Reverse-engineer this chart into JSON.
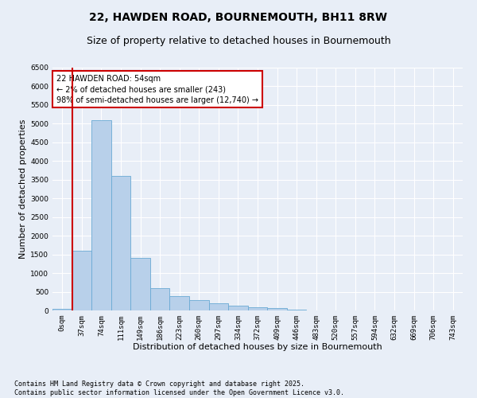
{
  "title": "22, HAWDEN ROAD, BOURNEMOUTH, BH11 8RW",
  "subtitle": "Size of property relative to detached houses in Bournemouth",
  "xlabel": "Distribution of detached houses by size in Bournemouth",
  "ylabel": "Number of detached properties",
  "footnote": "Contains HM Land Registry data © Crown copyright and database right 2025.\nContains public sector information licensed under the Open Government Licence v3.0.",
  "bar_labels": [
    "0sqm",
    "37sqm",
    "74sqm",
    "111sqm",
    "149sqm",
    "186sqm",
    "223sqm",
    "260sqm",
    "297sqm",
    "334sqm",
    "372sqm",
    "409sqm",
    "446sqm",
    "483sqm",
    "520sqm",
    "557sqm",
    "594sqm",
    "632sqm",
    "669sqm",
    "706sqm",
    "743sqm"
  ],
  "bar_values": [
    50,
    1600,
    5100,
    3600,
    1400,
    600,
    390,
    280,
    190,
    130,
    90,
    55,
    25,
    8,
    4,
    2,
    1,
    0,
    0,
    0,
    0
  ],
  "bar_color": "#b8d0ea",
  "bar_edge_color": "#6aaad4",
  "ylim": [
    0,
    6500
  ],
  "yticks": [
    0,
    500,
    1000,
    1500,
    2000,
    2500,
    3000,
    3500,
    4000,
    4500,
    5000,
    5500,
    6000,
    6500
  ],
  "property_bin_index": 1,
  "red_line_color": "#cc0000",
  "annotation_text": "22 HAWDEN ROAD: 54sqm\n← 2% of detached houses are smaller (243)\n98% of semi-detached houses are larger (12,740) →",
  "annotation_box_color": "#cc0000",
  "background_color": "#e8eef7",
  "grid_color": "#ffffff",
  "title_fontsize": 10,
  "subtitle_fontsize": 9,
  "axis_fontsize": 8,
  "tick_fontsize": 6.5,
  "footnote_fontsize": 6
}
